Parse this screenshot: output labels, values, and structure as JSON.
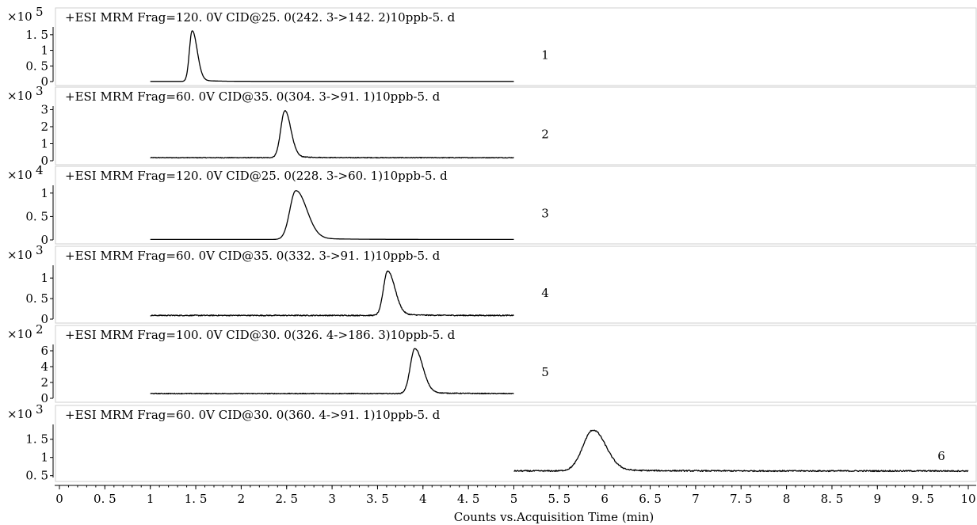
{
  "chart_data": [
    {
      "type": "line",
      "multiplier": "×10",
      "exponent": "5",
      "title": "+ESI MRM Frag=120. 0V CID@25. 0(242. 3->142. 2)10ppb-5. d",
      "peak_number": "1",
      "yticks": [
        {
          "value": 0,
          "label": "0"
        },
        {
          "value": 0.5,
          "label": "0. 5"
        },
        {
          "value": 1,
          "label": "1"
        },
        {
          "value": 1.5,
          "label": "1. 5"
        }
      ],
      "ylim": [
        0,
        1.8
      ],
      "x_range": [
        1.0,
        5.0
      ],
      "baseline": 0.005,
      "peak": {
        "x": 1.46,
        "height": 1.62,
        "sigma_left": 0.03,
        "sigma_right": 0.055
      },
      "noise": 0
    },
    {
      "type": "line",
      "multiplier": "×10",
      "exponent": "3",
      "title": "+ESI MRM Frag=60. 0V CID@35. 0(304. 3->91. 1)10ppb-5. d",
      "peak_number": "2",
      "yticks": [
        {
          "value": 0,
          "label": "0"
        },
        {
          "value": 1,
          "label": "1"
        },
        {
          "value": 2,
          "label": "2"
        },
        {
          "value": 3,
          "label": "3"
        }
      ],
      "ylim": [
        0,
        3.3
      ],
      "x_range": [
        1.0,
        5.0
      ],
      "baseline": 0.18,
      "peak": {
        "x": 2.48,
        "height": 2.75,
        "sigma_left": 0.045,
        "sigma_right": 0.065
      },
      "noise": 0.02
    },
    {
      "type": "line",
      "multiplier": "×10",
      "exponent": "4",
      "title": "+ESI MRM Frag=120. 0V CID@25. 0(228. 3->60. 1)10ppb-5. d",
      "peak_number": "3",
      "yticks": [
        {
          "value": 0,
          "label": "0"
        },
        {
          "value": 0.5,
          "label": "0. 5"
        },
        {
          "value": 1,
          "label": "1"
        }
      ],
      "ylim": [
        0,
        1.2
      ],
      "x_range": [
        1.0,
        5.0
      ],
      "baseline": 0.01,
      "peak": {
        "x": 2.6,
        "height": 1.04,
        "sigma_left": 0.065,
        "sigma_right": 0.12
      },
      "noise": 0
    },
    {
      "type": "line",
      "multiplier": "×10",
      "exponent": "3",
      "title": "+ESI MRM Frag=60. 0V CID@35. 0(332. 3->91. 1)10ppb-5. d",
      "peak_number": "4",
      "yticks": [
        {
          "value": 0,
          "label": "0"
        },
        {
          "value": 0.5,
          "label": "0. 5"
        },
        {
          "value": 1,
          "label": "1"
        }
      ],
      "ylim": [
        0,
        1.35
      ],
      "x_range": [
        1.0,
        5.0
      ],
      "baseline": 0.09,
      "peak": {
        "x": 3.61,
        "height": 1.08,
        "sigma_left": 0.045,
        "sigma_right": 0.08
      },
      "noise": 0.012
    },
    {
      "type": "line",
      "multiplier": "×10",
      "exponent": "2",
      "title": "+ESI MRM Frag=100. 0V CID@30. 0(326. 4->186. 3)10ppb-5. d",
      "peak_number": "5",
      "yticks": [
        {
          "value": 0,
          "label": "0"
        },
        {
          "value": 2,
          "label": "2"
        },
        {
          "value": 4,
          "label": "4"
        },
        {
          "value": 6,
          "label": "6"
        }
      ],
      "ylim": [
        0,
        7.0
      ],
      "x_range": [
        1.0,
        5.0
      ],
      "baseline": 0.6,
      "peak": {
        "x": 3.91,
        "height": 5.65,
        "sigma_left": 0.05,
        "sigma_right": 0.085
      },
      "noise": 0.05
    },
    {
      "type": "line",
      "multiplier": "×10",
      "exponent": "3",
      "title": "+ESI MRM Frag=60. 0V CID@30. 0(360. 4->91. 1)10ppb-5. d",
      "peak_number": "6",
      "yticks": [
        {
          "value": 0.5,
          "label": "0. 5"
        },
        {
          "value": 1,
          "label": "1"
        },
        {
          "value": 1.5,
          "label": "1. 5"
        }
      ],
      "ylim": [
        0.45,
        1.95
      ],
      "x_range": [
        5.0,
        10.0
      ],
      "baseline": 0.63,
      "peak": {
        "x": 5.87,
        "height": 1.12,
        "sigma_left": 0.11,
        "sigma_right": 0.14
      },
      "noise": 0.018
    }
  ],
  "xaxis": {
    "label": "Counts vs.Acquisition Time (min)",
    "xlim": [
      0,
      10
    ],
    "ticks": [
      {
        "value": 0,
        "label": "0"
      },
      {
        "value": 0.5,
        "label": "0. 5"
      },
      {
        "value": 1,
        "label": "1"
      },
      {
        "value": 1.5,
        "label": "1. 5"
      },
      {
        "value": 2,
        "label": "2"
      },
      {
        "value": 2.5,
        "label": "2. 5"
      },
      {
        "value": 3,
        "label": "3"
      },
      {
        "value": 3.5,
        "label": "3. 5"
      },
      {
        "value": 4,
        "label": "4"
      },
      {
        "value": 4.5,
        "label": "4. 5"
      },
      {
        "value": 5,
        "label": "5"
      },
      {
        "value": 5.5,
        "label": "5. 5"
      },
      {
        "value": 6,
        "label": "6"
      },
      {
        "value": 6.5,
        "label": "6. 5"
      },
      {
        "value": 7,
        "label": "7"
      },
      {
        "value": 7.5,
        "label": "7. 5"
      },
      {
        "value": 8,
        "label": "8"
      },
      {
        "value": 8.5,
        "label": "8. 5"
      },
      {
        "value": 9,
        "label": "9"
      },
      {
        "value": 9.5,
        "label": "9. 5"
      },
      {
        "value": 10,
        "label": "10"
      }
    ]
  }
}
